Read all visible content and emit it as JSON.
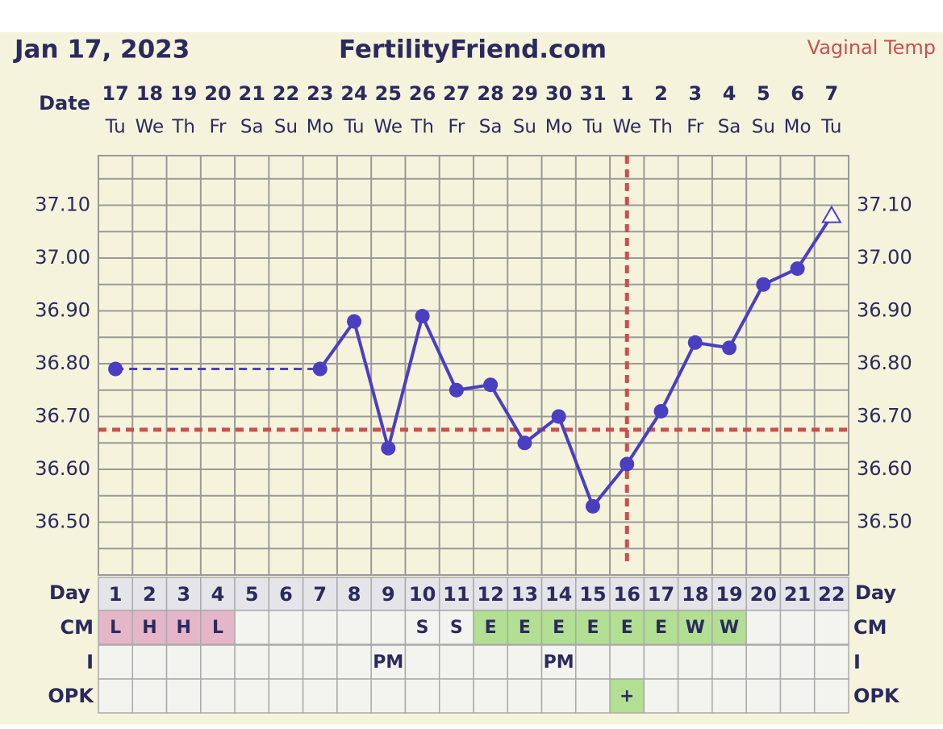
{
  "header": {
    "date": "Jan 17, 2023",
    "site": "FertilityFriend.com",
    "temp_type": "Vaginal Temp"
  },
  "row_labels": {
    "date": "Date",
    "day": "Day",
    "cm": "CM",
    "i": "I",
    "opk": "OPK"
  },
  "chart_data": {
    "type": "line",
    "x": [
      1,
      2,
      3,
      4,
      5,
      6,
      7,
      8,
      9,
      10,
      11,
      12,
      13,
      14,
      15,
      16,
      17,
      18,
      19,
      20,
      21,
      22
    ],
    "dates": [
      "17",
      "18",
      "19",
      "20",
      "21",
      "22",
      "23",
      "24",
      "25",
      "26",
      "27",
      "28",
      "29",
      "30",
      "31",
      "1",
      "2",
      "3",
      "4",
      "5",
      "6",
      "7"
    ],
    "weekdays": [
      "Tu",
      "We",
      "Th",
      "Fr",
      "Sa",
      "Su",
      "Mo",
      "Tu",
      "We",
      "Th",
      "Fr",
      "Sa",
      "Su",
      "Mo",
      "Tu",
      "We",
      "Th",
      "Fr",
      "Sa",
      "Su",
      "Mo",
      "Tu"
    ],
    "values": [
      36.79,
      null,
      null,
      null,
      null,
      null,
      36.79,
      36.88,
      36.64,
      36.89,
      36.75,
      36.76,
      36.65,
      36.7,
      36.53,
      36.61,
      36.71,
      36.84,
      36.83,
      36.95,
      36.98,
      37.08
    ],
    "color": "#4a3fc0",
    "last_marker": "triangle",
    "xlim": [
      0.5,
      22.5
    ],
    "ylim": [
      36.4,
      37.2
    ],
    "yticks": [
      {
        "value": 36.5,
        "label": "36.50"
      },
      {
        "value": 36.6,
        "label": "36.60"
      },
      {
        "value": 36.7,
        "label": "36.70"
      },
      {
        "value": 36.8,
        "label": "36.80"
      },
      {
        "value": 36.9,
        "label": "36.90"
      },
      {
        "value": 37.0,
        "label": "37.00"
      },
      {
        "value": 37.1,
        "label": "37.10"
      }
    ],
    "yminor": [
      36.4,
      36.45,
      36.55,
      36.65,
      36.75,
      36.85,
      36.95,
      37.05,
      37.15,
      37.2
    ],
    "coverline": 36.675,
    "ovulation_day": 16,
    "marker_line_color": "#c8504f",
    "cm": [
      "L",
      "H",
      "H",
      "L",
      null,
      null,
      null,
      null,
      null,
      "S",
      "S",
      "E",
      "E",
      "E",
      "E",
      "E",
      "E",
      "W",
      "W",
      null,
      null,
      null
    ],
    "intercourse": [
      null,
      null,
      null,
      null,
      null,
      null,
      null,
      null,
      "PM",
      null,
      null,
      null,
      null,
      "PM",
      null,
      null,
      null,
      null,
      null,
      null,
      null,
      null
    ],
    "opk": [
      null,
      null,
      null,
      null,
      null,
      null,
      null,
      null,
      null,
      null,
      null,
      null,
      null,
      null,
      null,
      "+",
      null,
      null,
      null,
      null,
      null,
      null
    ],
    "cm_colors": {
      "L": "#e5b5c8",
      "H": "#e5b5c8",
      "E": "#b2df92",
      "W": "#b2df92"
    },
    "opk_color": "#b2df92"
  }
}
